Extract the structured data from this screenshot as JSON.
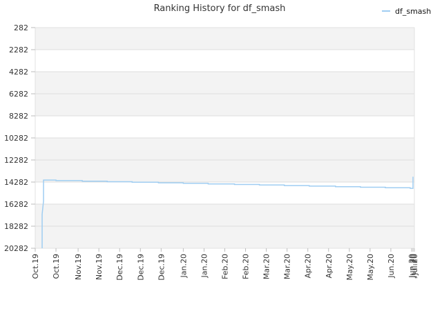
{
  "chart_data": {
    "type": "line",
    "title": "Ranking History for df_smash",
    "xlabel": "",
    "ylabel": "",
    "y_inverted": true,
    "ylim": [
      282,
      20282
    ],
    "y_ticks": [
      282,
      2282,
      4282,
      6282,
      8282,
      10282,
      12282,
      14282,
      16282,
      18282,
      20282
    ],
    "x_range": [
      "2019-10-01",
      "2020-07-01"
    ],
    "x_ticks": [
      {
        "label": "Oct.19",
        "date": "2019-10-01"
      },
      {
        "label": "Oct.19",
        "date": "2019-10-16"
      },
      {
        "label": "Nov.19",
        "date": "2019-11-01"
      },
      {
        "label": "Nov.19",
        "date": "2019-11-16"
      },
      {
        "label": "Dec.19",
        "date": "2019-12-01"
      },
      {
        "label": "Dec.19",
        "date": "2019-12-16"
      },
      {
        "label": "Dec.19",
        "date": "2019-12-31"
      },
      {
        "label": "Jan.20",
        "date": "2020-01-16"
      },
      {
        "label": "Jan.20",
        "date": "2020-01-31"
      },
      {
        "label": "Feb.20",
        "date": "2020-02-15"
      },
      {
        "label": "Feb.20",
        "date": "2020-03-01"
      },
      {
        "label": "Mar.20",
        "date": "2020-03-16"
      },
      {
        "label": "Mar.20",
        "date": "2020-03-31"
      },
      {
        "label": "Apr.20",
        "date": "2020-04-15"
      },
      {
        "label": "Apr.20",
        "date": "2020-04-30"
      },
      {
        "label": "May.20",
        "date": "2020-05-15"
      },
      {
        "label": "May.20",
        "date": "2020-05-30"
      },
      {
        "label": "Jun.20",
        "date": "2020-06-14"
      },
      {
        "label": "Jun.20",
        "date": "2020-06-29"
      },
      {
        "label": "Jun.20",
        "date": "2020-06-30"
      },
      {
        "label": "Jul.20",
        "date": "2020-07-01"
      }
    ],
    "grid": true,
    "legend_position": "top-right",
    "series": [
      {
        "name": "df_smash",
        "color": "#9fcdf2",
        "points": [
          {
            "x": "2019-10-06",
            "y": 20282
          },
          {
            "x": "2019-10-06",
            "y": 19000
          },
          {
            "x": "2019-10-06",
            "y": 17200
          },
          {
            "x": "2019-10-07",
            "y": 16000
          },
          {
            "x": "2019-10-07",
            "y": 14100
          },
          {
            "x": "2019-10-16",
            "y": 14100
          },
          {
            "x": "2019-10-16",
            "y": 14150
          },
          {
            "x": "2019-11-04",
            "y": 14150
          },
          {
            "x": "2019-11-04",
            "y": 14200
          },
          {
            "x": "2019-11-22",
            "y": 14200
          },
          {
            "x": "2019-11-22",
            "y": 14250
          },
          {
            "x": "2019-12-10",
            "y": 14250
          },
          {
            "x": "2019-12-10",
            "y": 14300
          },
          {
            "x": "2019-12-29",
            "y": 14300
          },
          {
            "x": "2019-12-29",
            "y": 14350
          },
          {
            "x": "2020-01-16",
            "y": 14350
          },
          {
            "x": "2020-01-16",
            "y": 14400
          },
          {
            "x": "2020-02-03",
            "y": 14400
          },
          {
            "x": "2020-02-03",
            "y": 14450
          },
          {
            "x": "2020-02-22",
            "y": 14450
          },
          {
            "x": "2020-02-22",
            "y": 14500
          },
          {
            "x": "2020-03-11",
            "y": 14500
          },
          {
            "x": "2020-03-11",
            "y": 14550
          },
          {
            "x": "2020-03-29",
            "y": 14550
          },
          {
            "x": "2020-03-29",
            "y": 14600
          },
          {
            "x": "2020-04-16",
            "y": 14600
          },
          {
            "x": "2020-04-16",
            "y": 14650
          },
          {
            "x": "2020-05-05",
            "y": 14650
          },
          {
            "x": "2020-05-05",
            "y": 14700
          },
          {
            "x": "2020-05-23",
            "y": 14700
          },
          {
            "x": "2020-05-23",
            "y": 14750
          },
          {
            "x": "2020-06-10",
            "y": 14750
          },
          {
            "x": "2020-06-10",
            "y": 14800
          },
          {
            "x": "2020-06-28",
            "y": 14800
          },
          {
            "x": "2020-06-28",
            "y": 14850
          },
          {
            "x": "2020-06-30",
            "y": 14850
          },
          {
            "x": "2020-06-30",
            "y": 13800
          }
        ]
      }
    ]
  }
}
